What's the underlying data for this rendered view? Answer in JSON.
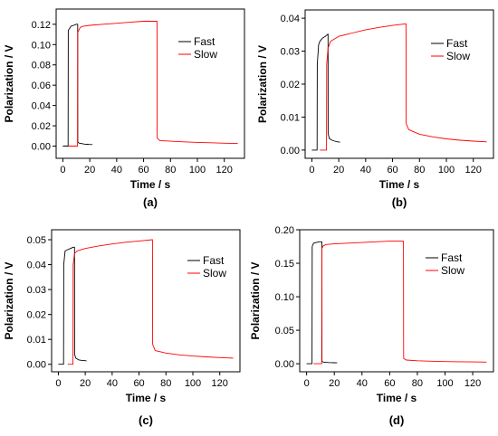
{
  "colors": {
    "fast": "#000000",
    "slow": "#ff0000",
    "axis": "#000000",
    "background": "#ffffff"
  },
  "chart_data": [
    {
      "type": "line",
      "panel_label": "(a)",
      "xlabel": "Time / s",
      "ylabel": "Polarization / V",
      "xlim": [
        -5,
        135
      ],
      "ylim": [
        -0.012,
        0.135
      ],
      "xticks": [
        0,
        20,
        40,
        60,
        80,
        100,
        120
      ],
      "yticks": [
        0.0,
        0.02,
        0.04,
        0.06,
        0.08,
        0.1,
        0.12
      ],
      "ytick_labels": [
        "0.00",
        "0.02",
        "0.04",
        "0.06",
        "0.08",
        "0.10",
        "0.12"
      ],
      "legend_position": "upper-right",
      "grid": false,
      "series": [
        {
          "name": "Fast",
          "color": "#000000",
          "x": [
            0,
            3.9,
            4,
            6,
            8,
            10,
            11,
            11.1,
            12,
            14,
            16,
            18,
            20,
            22
          ],
          "y": [
            0,
            0,
            0.114,
            0.118,
            0.119,
            0.12,
            0.12,
            0.004,
            0.003,
            0.0025,
            0.002,
            0.0018,
            0.0016,
            0.0015
          ]
        },
        {
          "name": "Slow",
          "color": "#ff0000",
          "x": [
            4,
            10.9,
            11,
            13,
            15,
            20,
            30,
            40,
            50,
            60,
            70,
            70.1,
            72,
            80,
            90,
            100,
            110,
            120,
            130
          ],
          "y": [
            0,
            0,
            0.112,
            0.117,
            0.118,
            0.119,
            0.12,
            0.121,
            0.122,
            0.123,
            0.123,
            0.008,
            0.0055,
            0.0048,
            0.0042,
            0.0037,
            0.0033,
            0.0029,
            0.0026
          ]
        }
      ]
    },
    {
      "type": "line",
      "panel_label": "(b)",
      "xlabel": "Time / s",
      "ylabel": "Polarization / V",
      "xlim": [
        -5,
        135
      ],
      "ylim": [
        -0.0025,
        0.0425
      ],
      "xticks": [
        0,
        20,
        40,
        60,
        80,
        100,
        120
      ],
      "yticks": [
        0.0,
        0.01,
        0.02,
        0.03,
        0.04
      ],
      "ytick_labels": [
        "0.00",
        "0.01",
        "0.02",
        "0.03",
        "0.04"
      ],
      "legend_position": "upper-right",
      "grid": false,
      "series": [
        {
          "name": "Fast",
          "color": "#000000",
          "x": [
            0,
            3.9,
            4,
            5,
            6,
            8,
            10,
            12,
            12.1,
            13,
            15,
            17,
            19,
            21
          ],
          "y": [
            0,
            0,
            0.026,
            0.032,
            0.033,
            0.034,
            0.0345,
            0.0352,
            0.005,
            0.0035,
            0.003,
            0.0027,
            0.0025,
            0.0024
          ]
        },
        {
          "name": "Slow",
          "color": "#ff0000",
          "x": [
            6,
            10.9,
            11,
            12,
            14,
            20,
            30,
            40,
            50,
            60,
            70,
            70.1,
            72,
            80,
            90,
            100,
            110,
            120,
            130
          ],
          "y": [
            0,
            0,
            0.026,
            0.031,
            0.033,
            0.0345,
            0.0355,
            0.0365,
            0.0372,
            0.0378,
            0.0383,
            0.008,
            0.0062,
            0.0048,
            0.004,
            0.0034,
            0.003,
            0.0027,
            0.0025
          ]
        }
      ]
    },
    {
      "type": "line",
      "panel_label": "(c)",
      "xlabel": "Time / s",
      "ylabel": "Polarization / V",
      "xlim": [
        -5,
        135
      ],
      "ylim": [
        -0.003,
        0.054
      ],
      "xticks": [
        0,
        20,
        40,
        60,
        80,
        100,
        120
      ],
      "yticks": [
        0.0,
        0.01,
        0.02,
        0.03,
        0.04,
        0.05
      ],
      "ytick_labels": [
        "0.00",
        "0.01",
        "0.02",
        "0.03",
        "0.04",
        "0.05"
      ],
      "legend_position": "lower-right",
      "grid": false,
      "series": [
        {
          "name": "Fast",
          "color": "#000000",
          "x": [
            0,
            3.9,
            4,
            5,
            7,
            9,
            11,
            12,
            12.1,
            13,
            15,
            17,
            19,
            21
          ],
          "y": [
            0,
            0,
            0.04,
            0.0455,
            0.046,
            0.0465,
            0.047,
            0.047,
            0.004,
            0.0025,
            0.0018,
            0.0016,
            0.0015,
            0.0014
          ]
        },
        {
          "name": "Slow",
          "color": "#ff0000",
          "x": [
            7,
            10.9,
            11,
            12,
            14,
            20,
            30,
            40,
            50,
            60,
            70,
            70.1,
            72,
            80,
            90,
            100,
            110,
            120,
            130
          ],
          "y": [
            0,
            0,
            0.04,
            0.0445,
            0.0455,
            0.0465,
            0.0475,
            0.0483,
            0.049,
            0.0495,
            0.05,
            0.008,
            0.0055,
            0.0045,
            0.0038,
            0.0033,
            0.003,
            0.0027,
            0.0025
          ]
        }
      ]
    },
    {
      "type": "line",
      "panel_label": "(d)",
      "xlabel": "Time / s",
      "ylabel": "Polarization / V",
      "xlim": [
        -5,
        135
      ],
      "ylim": [
        -0.012,
        0.2
      ],
      "xticks": [
        0,
        20,
        40,
        60,
        80,
        100,
        120
      ],
      "yticks": [
        0.0,
        0.05,
        0.1,
        0.15,
        0.2
      ],
      "ytick_labels": [
        "0.00",
        "0.05",
        "0.10",
        "0.15",
        "0.20"
      ],
      "legend_position": "upper-right",
      "grid": false,
      "series": [
        {
          "name": "Fast",
          "color": "#000000",
          "x": [
            0,
            3.9,
            4,
            5,
            7,
            9,
            11,
            11.1,
            12,
            14,
            16,
            18,
            20,
            22
          ],
          "y": [
            0,
            0,
            0.175,
            0.18,
            0.181,
            0.182,
            0.182,
            0.004,
            0.0025,
            0.002,
            0.0018,
            0.0016,
            0.0015,
            0.0014
          ]
        },
        {
          "name": "Slow",
          "color": "#ff0000",
          "x": [
            5,
            10.9,
            11,
            12,
            14,
            20,
            30,
            40,
            50,
            60,
            70,
            70.1,
            72,
            80,
            90,
            100,
            110,
            120,
            130
          ],
          "y": [
            0,
            0,
            0.172,
            0.176,
            0.178,
            0.179,
            0.18,
            0.181,
            0.182,
            0.183,
            0.183,
            0.008,
            0.0055,
            0.0045,
            0.0038,
            0.0033,
            0.003,
            0.0027,
            0.0025
          ]
        }
      ]
    }
  ]
}
